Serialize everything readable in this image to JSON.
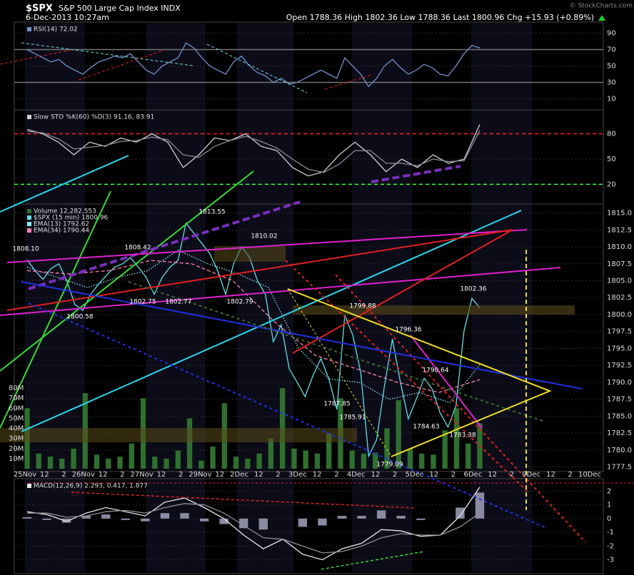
{
  "header": {
    "symbol": "$SPX",
    "name": "S&P 500 Large Cap Index INDX",
    "date": "6-Dec-2013 10:27am",
    "quote": "Open 1788.36  High 1802.36  Low 1788.36  Last 1800.96  Chg +15.93 (+0.89%)",
    "credit": "© StockCharts.com"
  },
  "chart_data": [
    {
      "type": "line",
      "ylim": [
        0,
        100
      ],
      "yticks": [
        10,
        30,
        50,
        70,
        90
      ],
      "grid": true,
      "hlines": [
        {
          "value": 70,
          "color": "#777"
        },
        {
          "value": 30,
          "color": "#777"
        }
      ],
      "series": [
        {
          "name": "RSI(14) 72.02",
          "color": "#6f93c9",
          "values": [
            70,
            65,
            60,
            55,
            58,
            50,
            45,
            40,
            48,
            55,
            58,
            62,
            60,
            65,
            55,
            45,
            40,
            50,
            55,
            60,
            78,
            72,
            60,
            50,
            45,
            40,
            55,
            62,
            50,
            42,
            38,
            30,
            35,
            28,
            30,
            35,
            40,
            45,
            40,
            35,
            60,
            50,
            40,
            25,
            35,
            50,
            58,
            48,
            40,
            45,
            52,
            48,
            40,
            38,
            50,
            65,
            75,
            72
          ]
        }
      ]
    },
    {
      "type": "line",
      "ylim": [
        0,
        105
      ],
      "yticks": [
        20,
        50,
        80
      ],
      "grid": true,
      "hlines": [
        {
          "value": 80,
          "color": "#ff2020"
        },
        {
          "value": 20,
          "color": "#3cff3c"
        }
      ],
      "series": [
        {
          "name": "Slow STO %K(60) %D(3) 91.16, 83.91",
          "color": "#cfcfcf",
          "values": [
            85,
            80,
            70,
            55,
            70,
            65,
            75,
            70,
            80,
            70,
            40,
            55,
            75,
            72,
            80,
            65,
            60,
            40,
            30,
            35,
            55,
            70,
            55,
            35,
            50,
            40,
            55,
            45,
            50,
            91
          ]
        },
        {
          "color": "#8a8a9a",
          "values": [
            83,
            81,
            74,
            62,
            64,
            66,
            71,
            72,
            76,
            73,
            55,
            52,
            65,
            72,
            77,
            71,
            63,
            50,
            38,
            34,
            44,
            60,
            60,
            45,
            45,
            42,
            50,
            47,
            48,
            84
          ]
        }
      ]
    },
    {
      "type": "line",
      "ylim": [
        1777.25,
        1815.9
      ],
      "y2lim": [
        0,
        260000000
      ],
      "grid": true,
      "yticks": [
        {
          "value": 1777.5,
          "label": "1777.5"
        },
        {
          "value": 1780,
          "label": "1780.0"
        },
        {
          "value": 1782.5,
          "label": "1782.5"
        },
        {
          "value": 1785,
          "label": "1785.0"
        },
        {
          "value": 1787.5,
          "label": "1787.5"
        },
        {
          "value": 1790,
          "label": "1790.0"
        },
        {
          "value": 1792.5,
          "label": "1792.5"
        },
        {
          "value": 1795,
          "label": "1795.0"
        },
        {
          "value": 1797.5,
          "label": "1797.5"
        },
        {
          "value": 1800,
          "label": "1800.0"
        },
        {
          "value": 1802.5,
          "label": "1802.5"
        },
        {
          "value": 1805,
          "label": "1805.0"
        },
        {
          "value": 1807.5,
          "label": "1807.5"
        },
        {
          "value": 1810,
          "label": "1810.0"
        },
        {
          "value": 1812.5,
          "label": "1812.5"
        },
        {
          "value": 1815,
          "label": "1815.0"
        }
      ],
      "y2ticks": [
        {
          "value": 10000000,
          "label": "10M"
        },
        {
          "value": 20000000,
          "label": "20M"
        },
        {
          "value": 30000000,
          "label": "30M"
        },
        {
          "value": 40000000,
          "label": "40M"
        },
        {
          "value": 50000000,
          "label": "50M"
        },
        {
          "value": 60000000,
          "label": "60M"
        },
        {
          "value": 70000000,
          "label": "70M"
        },
        {
          "value": 80000000,
          "label": "80M"
        }
      ],
      "x_labels": [
        "25Nov",
        "12",
        "2",
        "26Nov",
        "12",
        "2",
        "27Nov",
        "12",
        "2",
        "29Nov",
        "12",
        "2Dec",
        "12",
        "2",
        "3Dec",
        "12",
        "2",
        "4Dec",
        "12",
        "2",
        "5Dec",
        "12",
        "2",
        "6Dec",
        "12",
        "2",
        "9Dec",
        "12",
        "2",
        "10Dec"
      ],
      "series": [
        {
          "name": "Volume 12,282,553",
          "type": "bar",
          "axis": "y2",
          "color": "#2f6f2f",
          "values": [
            60000000,
            15000000,
            12000000,
            10000000,
            20000000,
            75000000,
            14000000,
            10000000,
            12000000,
            25000000,
            70000000,
            12000000,
            10000000,
            18000000,
            50000000,
            8000000,
            22000000,
            65000000,
            12000000,
            10000000,
            15000000,
            30000000,
            80000000,
            20000000,
            18000000,
            15000000,
            35000000,
            70000000,
            18000000,
            15000000,
            16000000,
            40000000,
            68000000,
            20000000,
            15000000,
            14000000,
            38000000,
            60000000,
            25000000,
            45000000
          ]
        },
        {
          "name": "$SPX (15 min) 1800.96",
          "color": "#5fe0e8",
          "values": [
            1808.1,
            1806.5,
            1805.2,
            1806.8,
            1807.5,
            1805.0,
            1801.5,
            1800.6,
            1803.0,
            1804.5,
            1805.8,
            1807.0,
            1807.5,
            1808.4,
            1807.0,
            1805.5,
            1803.0,
            1805.5,
            1807.0,
            1808.0,
            1813.5,
            1812.0,
            1810.5,
            1809.0,
            1806.5,
            1803.0,
            1807.5,
            1810.0,
            1808.5,
            1805.0,
            1803.0,
            1796.0,
            1798.5,
            1792.0,
            1790.0,
            1787.9,
            1791.0,
            1793.5,
            1790.5,
            1786.0,
            1799.9,
            1797.0,
            1791.5,
            1779.1,
            1781.5,
            1789.5,
            1796.4,
            1790.0,
            1784.6,
            1787.5,
            1790.6,
            1789.0,
            1785.5,
            1783.4,
            1786.5,
            1797.5,
            1802.4,
            1801.0
          ]
        },
        {
          "name": "EMA(13) 1792.62",
          "color": "#8fe8ff",
          "style": "dotted",
          "values": [
            1807,
            1805.5,
            1804,
            1805.5,
            1806.5,
            1809.5,
            1807.5,
            1806,
            1804,
            1795,
            1790.5,
            1790,
            1787.5,
            1788.5,
            1787,
            1792.6
          ]
        },
        {
          "name": "EMA(34) 1790.44",
          "color": "#ff7fb0",
          "style": "dashed",
          "values": [
            1806.5,
            1806,
            1806.5,
            1808,
            1807.5,
            1805,
            1799,
            1794,
            1792,
            1790,
            1788.5,
            1790.4
          ]
        }
      ],
      "annotations": [
        "1808.10",
        "1808.42",
        "1813.55",
        "1810.02",
        "1800.58",
        "1802.75",
        "1802.77",
        "1802.79",
        "1799.88",
        "1796.36",
        "1790.64",
        "1787.85",
        "1785.91",
        "1784.63",
        "1783.38",
        "1779.09",
        "1802.36"
      ]
    },
    {
      "type": "line",
      "ylim": [
        -3.8,
        2.7
      ],
      "yticks": [
        -3,
        -2,
        -1,
        0,
        1,
        2
      ],
      "grid": true,
      "series": [
        {
          "type": "bar",
          "color": "#8a8aa0",
          "values": [
            0.1,
            -0.1,
            -0.3,
            0.2,
            0.3,
            -0.1,
            -0.2,
            0.4,
            0.4,
            -0.2,
            -0.4,
            -0.7,
            -0.8,
            0,
            -0.6,
            -0.5,
            0.2,
            0.2,
            0.6,
            0.2,
            -0.1,
            0,
            0.8,
            1.9
          ]
        },
        {
          "name": "MACD(12,26,9) 2.293, 0.417, 1.877",
          "color": "#e8e8e8",
          "values": [
            0.5,
            0.3,
            -0.2,
            0.4,
            0.8,
            0.5,
            0.2,
            1.2,
            1.5,
            0.8,
            0,
            -1.2,
            -2.2,
            -1.5,
            -2.6,
            -3.0,
            -2.2,
            -1.8,
            -0.8,
            -0.9,
            -1.3,
            -1.2,
            0.2,
            2.3
          ]
        },
        {
          "color": "#8f8f8f",
          "values": [
            0.4,
            0.4,
            0.1,
            0.2,
            0.5,
            0.6,
            0.4,
            0.8,
            1.1,
            1.0,
            0.4,
            -0.5,
            -1.4,
            -1.5,
            -2.0,
            -2.5,
            -2.4,
            -2.0,
            -1.4,
            -1.1,
            -1.2,
            -1.2,
            -0.6,
            0.4
          ]
        }
      ]
    }
  ]
}
